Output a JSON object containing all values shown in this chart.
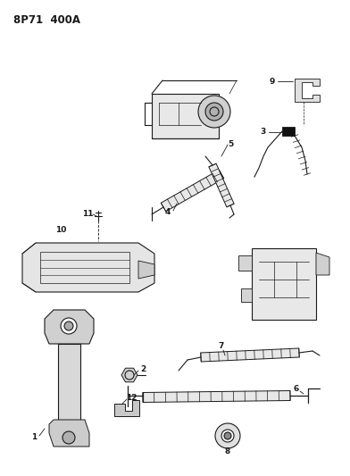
{
  "title": "8P71  400A",
  "bg_color": "#ffffff",
  "fg_color": "#1a1a1a",
  "figsize": [
    3.92,
    5.33
  ],
  "dpi": 100,
  "label_fontsize": 6.0
}
